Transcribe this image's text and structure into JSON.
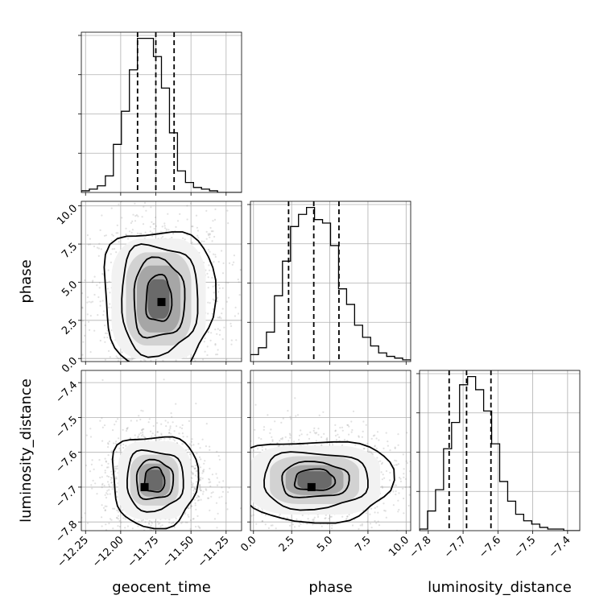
{
  "chart_data": {
    "type": "corner",
    "parameters": [
      "geocent_time",
      "phase",
      "luminosity_distance"
    ],
    "axis_labels": {
      "geocent_time": "geocent_time",
      "phase": "phase",
      "luminosity_distance": "luminosity_distance"
    },
    "ranges": {
      "geocent_time": [
        -12.28,
        -11.14
      ],
      "phase": [
        -0.2,
        10.3
      ],
      "luminosity_distance": [
        -7.825,
        -7.365
      ]
    },
    "ticks": {
      "geocent_time": {
        "values": [
          -12.25,
          -12.0,
          -11.75,
          -11.5,
          -11.25
        ],
        "labels": [
          "−12.25",
          "−12.00",
          "−11.75",
          "−11.50",
          "−11.25"
        ]
      },
      "phase": {
        "values": [
          0.0,
          2.5,
          5.0,
          7.5,
          10.0
        ],
        "labels": [
          "0.0",
          "2.5",
          "5.0",
          "7.5",
          "10.0"
        ]
      },
      "luminosity_distance": {
        "values": [
          -7.8,
          -7.7,
          -7.6,
          -7.5,
          -7.4
        ],
        "labels": [
          "−7.8",
          "−7.7",
          "−7.6",
          "−7.5",
          "−7.4"
        ]
      }
    },
    "quantiles": {
      "geocent_time": [
        -11.88,
        -11.75,
        -11.62
      ],
      "phase": [
        2.3,
        3.95,
        5.6
      ],
      "luminosity_distance": [
        -7.74,
        -7.69,
        -7.62
      ]
    },
    "histograms": {
      "geocent_time": {
        "edges_start": -12.28,
        "bin_width": 0.057,
        "counts": [
          1,
          2,
          4,
          10,
          29,
          49,
          74,
          93,
          93,
          82,
          63,
          36,
          13,
          6,
          3,
          2,
          1,
          0,
          0,
          0
        ]
      },
      "phase": {
        "edges_start": -0.2,
        "bin_width": 0.525,
        "counts": [
          4,
          8,
          17,
          38,
          58,
          78,
          85,
          89,
          82,
          80,
          67,
          42,
          33,
          21,
          14,
          9,
          5,
          3,
          2,
          1
        ]
      },
      "luminosity_distance": {
        "edges_start": -7.825,
        "bin_width": 0.023,
        "counts": [
          1,
          12,
          25,
          50,
          66,
          89,
          94,
          86,
          73,
          53,
          30,
          18,
          10,
          6,
          4,
          2,
          1,
          1,
          0,
          0
        ]
      }
    },
    "joint": [
      {
        "x": "geocent_time",
        "y": "phase",
        "center": [
          -11.73,
          3.9
        ],
        "peak": [
          -11.71,
          3.7
        ],
        "levels": [
          {
            "w": 0.09,
            "h": 1.5
          },
          {
            "w": 0.18,
            "h": 2.55
          },
          {
            "w": 0.27,
            "h": 3.55
          },
          {
            "w": 0.39,
            "h": 4.6
          }
        ]
      },
      {
        "x": "geocent_time",
        "y": "luminosity_distance",
        "center": [
          -11.76,
          -7.68
        ],
        "peak": [
          -11.83,
          -7.7
        ],
        "levels": [
          {
            "w": 0.07,
            "h": 0.035
          },
          {
            "w": 0.13,
            "h": 0.055
          },
          {
            "w": 0.2,
            "h": 0.085
          },
          {
            "w": 0.3,
            "h": 0.13
          }
        ]
      },
      {
        "x": "phase",
        "y": "luminosity_distance",
        "center": [
          4.0,
          -7.68
        ],
        "peak": [
          3.8,
          -7.7
        ],
        "levels": [
          {
            "w": 1.3,
            "h": 0.03
          },
          {
            "w": 2.2,
            "h": 0.05
          },
          {
            "w": 3.4,
            "h": 0.08
          },
          {
            "w": 5.0,
            "h": 0.115
          }
        ]
      }
    ],
    "grid": true
  }
}
